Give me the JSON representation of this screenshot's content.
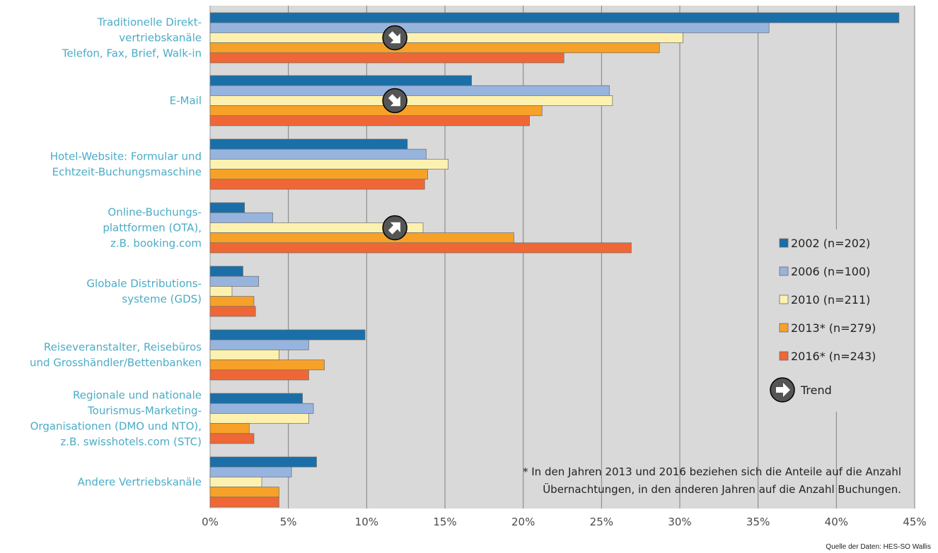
{
  "chart_data": {
    "type": "bar",
    "orientation": "horizontal",
    "categories": [
      [
        "Traditionelle Direkt-",
        "vertriebskanäle",
        "Telefon, Fax, Brief, Walk-in"
      ],
      [
        "E-Mail"
      ],
      [
        "Hotel-Website: Formular und",
        "Echtzeit-Buchungsmaschine"
      ],
      [
        "Online-Buchungs-",
        "plattformen (OTA),",
        "z.B. booking.com"
      ],
      [
        "Globale Distributions-",
        "systeme (GDS)"
      ],
      [
        "Reiseveranstalter, Reisebüros",
        "und Grosshändler/Bettenbanken"
      ],
      [
        "Regionale und nationale",
        "Tourismus-Marketing-",
        "Organisationen (DMO und NTO),",
        "z.B. swisshotels.com (STC)"
      ],
      [
        "Andere Vertriebskanäle"
      ]
    ],
    "series": [
      {
        "name": "2002 (n=202)",
        "color": "#1a6fa8",
        "values": [
          44.0,
          16.7,
          12.6,
          2.2,
          2.1,
          9.9,
          5.9,
          6.8
        ]
      },
      {
        "name": "2006 (n=100)",
        "color": "#97b4df",
        "values": [
          35.7,
          25.5,
          13.8,
          4.0,
          3.1,
          6.3,
          6.6,
          5.2
        ]
      },
      {
        "name": "2010 (n=211)",
        "color": "#fdf1b0",
        "values": [
          30.2,
          25.7,
          15.2,
          13.6,
          1.4,
          4.4,
          6.3,
          3.3
        ]
      },
      {
        "name": "2013* (n=279)",
        "color": "#f7a128",
        "values": [
          28.7,
          21.2,
          13.9,
          19.4,
          2.8,
          7.3,
          2.5,
          4.4
        ]
      },
      {
        "name": "2016* (n=243)",
        "color": "#ef6736",
        "values": [
          22.6,
          20.4,
          13.7,
          26.9,
          2.9,
          6.3,
          2.8,
          4.4
        ]
      }
    ],
    "xlim": [
      0,
      45
    ],
    "x_ticks": [
      0,
      5,
      10,
      15,
      20,
      25,
      30,
      35,
      40,
      45
    ],
    "tick_suffix": "%",
    "grid": true,
    "legend_position": "right",
    "trend_markers": [
      {
        "category_index": 0,
        "x": 11.8,
        "direction": "down"
      },
      {
        "category_index": 1,
        "x": 11.8,
        "direction": "down"
      },
      {
        "category_index": 3,
        "x": 11.8,
        "direction": "up"
      }
    ],
    "trend_label": "Trend",
    "footnote": [
      "* In den Jahren 2013 und 2016 beziehen sich die Anteile auf die Anzahl",
      "Übernachtungen, in den anderen Jahren auf die Anzahl Buchungen."
    ],
    "source": "Quelle der Daten: HES-SO Wallis"
  },
  "colors": {
    "plot_background": "#d9d9d9",
    "gridline": "#808080",
    "category_label": "#4bacc6",
    "trend_icon": "#555555"
  }
}
